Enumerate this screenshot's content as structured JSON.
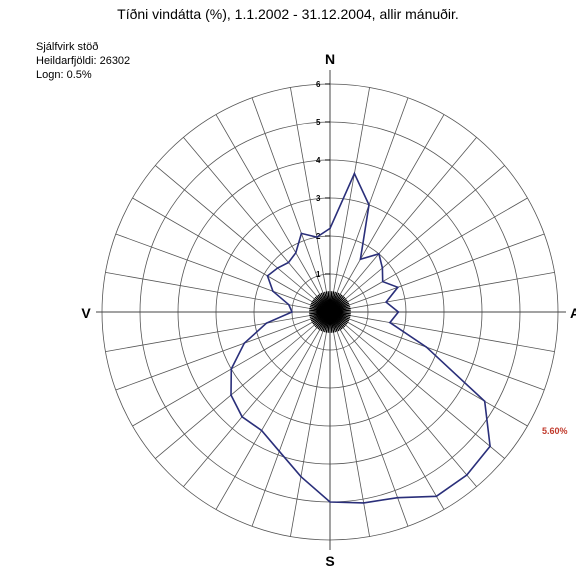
{
  "title": "Tíðni vindátta (%), 1.1.2002 - 31.12.2004, allir mánuðir.",
  "info": {
    "station": "Sjálfvirk stöð",
    "total": "Heildarfjöldi: 26302",
    "calm": "Logn: 0.5%"
  },
  "directions": {
    "north": "N",
    "east": "A",
    "south": "S",
    "west": "V"
  },
  "max_label": "5.60%",
  "colors": {
    "series": "#2a2f7a",
    "max_label": "#c0392b",
    "grid": "#555555"
  },
  "chart_data": {
    "type": "polar-line",
    "title": "Tíðni vindátta (%), 1.1.2002 - 31.12.2004, allir mánuðir.",
    "radial_ticks": [
      "0",
      "1",
      "2",
      "3",
      "4",
      "5",
      "6"
    ],
    "rlim": [
      0,
      6
    ],
    "sectors": 36,
    "angle_step_deg": 10,
    "angles_deg": [
      0,
      10,
      20,
      30,
      40,
      50,
      60,
      70,
      80,
      90,
      100,
      110,
      120,
      130,
      140,
      150,
      160,
      170,
      180,
      190,
      200,
      210,
      220,
      230,
      240,
      250,
      260,
      270,
      280,
      290,
      300,
      310,
      320,
      330,
      340,
      350
    ],
    "values": [
      2.2,
      3.7,
      3.0,
      1.6,
      2.0,
      1.8,
      1.6,
      1.9,
      1.5,
      1.8,
      1.6,
      2.7,
      4.7,
      5.5,
      5.6,
      5.6,
      5.2,
      5.1,
      5.0,
      4.4,
      3.9,
      3.6,
      3.6,
      3.4,
      3.0,
      2.4,
      1.7,
      1.0,
      1.1,
      1.6,
      1.9,
      1.8,
      1.7,
      1.8,
      2.2,
      2.0
    ],
    "grid": true
  }
}
